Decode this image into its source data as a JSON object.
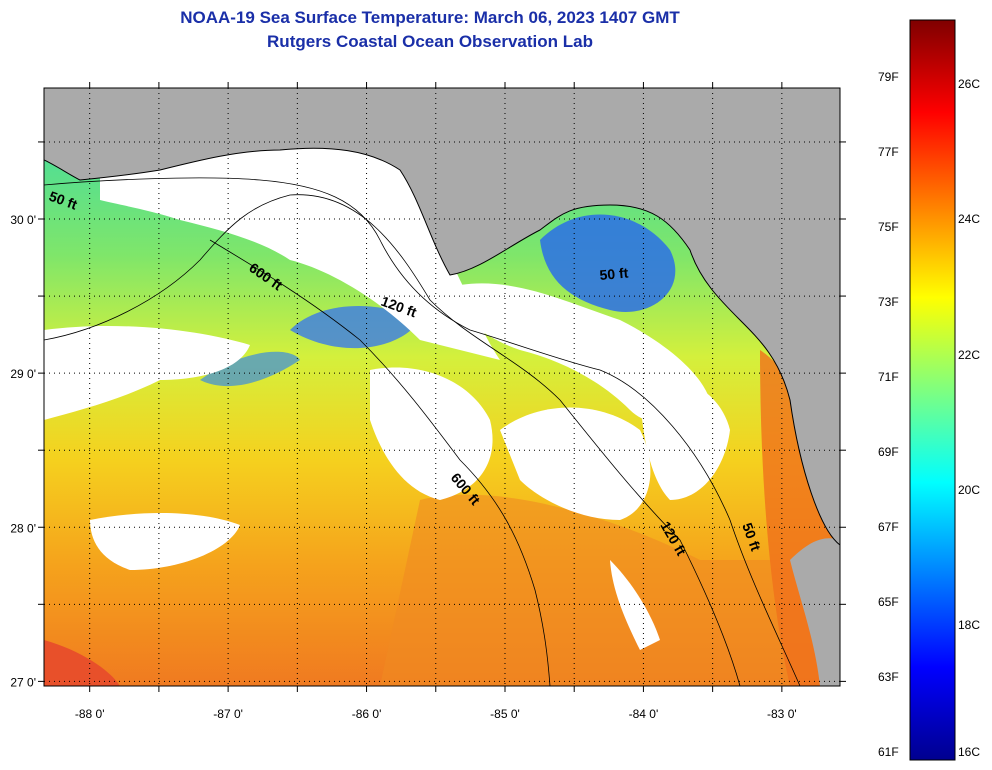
{
  "title": "NOAA-19 Sea Surface Temperature:  March 06, 2023 1407 GMT",
  "subtitle": "Rutgers Coastal Ocean Observation Lab",
  "colors": {
    "land": "#aaaaaa",
    "cloud": "#ffffff",
    "frame": "#000000",
    "title": "#1a2fa8"
  },
  "map": {
    "lon_range": [
      -88.33,
      -82.58
    ],
    "lat_range": [
      26.97,
      30.85
    ],
    "lon_ticks": [
      {
        "value": -88,
        "label": "-88 0'"
      },
      {
        "value": -87,
        "label": "-87 0'"
      },
      {
        "value": -86,
        "label": "-86 0'"
      },
      {
        "value": -85,
        "label": "-85 0'"
      },
      {
        "value": -84,
        "label": "-84 0'"
      },
      {
        "value": -83,
        "label": "-83 0'"
      }
    ],
    "lat_ticks": [
      {
        "value": 30,
        "label": "30 0'"
      },
      {
        "value": 29,
        "label": "29 0'"
      },
      {
        "value": 28,
        "label": "28 0'"
      },
      {
        "value": 27,
        "label": "27 0'"
      }
    ],
    "contour_labels": [
      "50 ft",
      "600 ft",
      "120 ft",
      "50 ft",
      "600 ft",
      "120 ft",
      "50 ft"
    ]
  },
  "colorbar": {
    "celsius": [
      {
        "value": 26,
        "label": "26C"
      },
      {
        "value": 24,
        "label": "24C"
      },
      {
        "value": 22,
        "label": "22C"
      },
      {
        "value": 20,
        "label": "20C"
      },
      {
        "value": 18,
        "label": "18C"
      },
      {
        "value": 16,
        "label": "16C"
      }
    ],
    "fahrenheit": [
      {
        "value": 79,
        "label": "79F"
      },
      {
        "value": 77,
        "label": "77F"
      },
      {
        "value": 75,
        "label": "75F"
      },
      {
        "value": 73,
        "label": "73F"
      },
      {
        "value": 71,
        "label": "71F"
      },
      {
        "value": 69,
        "label": "69F"
      },
      {
        "value": 67,
        "label": "67F"
      },
      {
        "value": 65,
        "label": "65F"
      },
      {
        "value": 63,
        "label": "63F"
      },
      {
        "value": 61,
        "label": "61F"
      }
    ]
  }
}
